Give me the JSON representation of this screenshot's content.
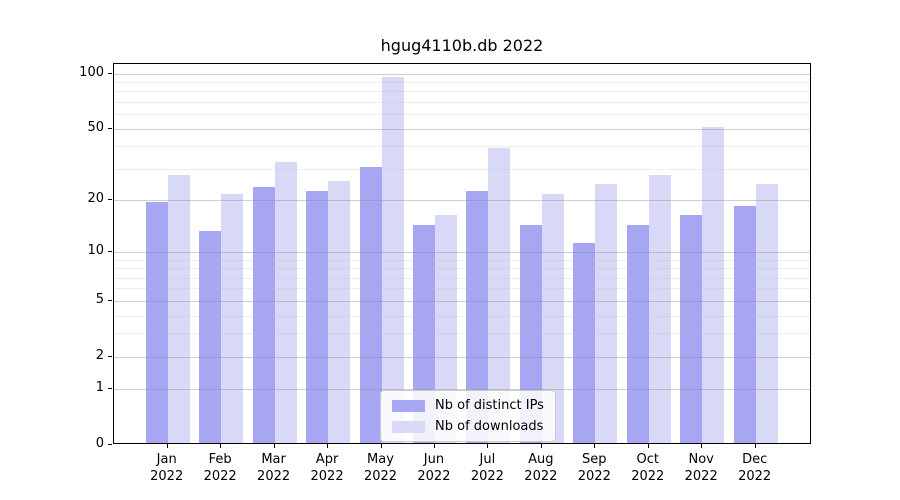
{
  "chart_data": {
    "type": "bar",
    "title": "hgug4110b.db 2022",
    "categories": [
      "Jan",
      "Feb",
      "Mar",
      "Apr",
      "May",
      "Jun",
      "Jul",
      "Aug",
      "Sep",
      "Oct",
      "Nov",
      "Dec"
    ],
    "category_year": "2022",
    "series": [
      {
        "name": "Nb of distinct IPs",
        "color": "#a6a6f2",
        "values": [
          19,
          13,
          23,
          22,
          30,
          14,
          22,
          14,
          11,
          14,
          16,
          18
        ]
      },
      {
        "name": "Nb of downloads",
        "color": "#d8d8f7",
        "values": [
          27,
          21,
          32,
          25,
          94,
          16,
          38,
          21,
          24,
          27,
          50,
          24
        ]
      }
    ],
    "yscale": "log1p",
    "yticks": [
      0,
      1,
      2,
      5,
      10,
      20,
      50,
      100
    ],
    "minor_yticks": [
      3,
      4,
      6,
      7,
      8,
      9,
      30,
      40,
      60,
      70,
      80,
      90
    ],
    "ylim": [
      0,
      113
    ],
    "grid": true,
    "legend_position": "lower-center-inside"
  }
}
